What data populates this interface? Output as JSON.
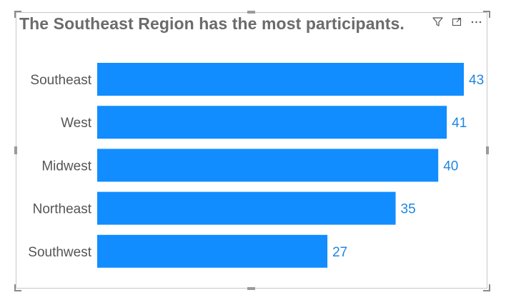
{
  "visual": {
    "title": "The Southeast Region has the most participants.",
    "header_icons": [
      "filter-icon",
      "focus-mode-icon",
      "more-options-icon"
    ]
  },
  "colors": {
    "bar": "#118dff",
    "value_label": "#1f86e0",
    "category_label": "#555555",
    "title": "#6b6b6b"
  },
  "chart_data": {
    "type": "bar",
    "orientation": "horizontal",
    "title": "The Southeast Region has the most participants.",
    "categories": [
      "Southeast",
      "West",
      "Midwest",
      "Northeast",
      "Southwest"
    ],
    "values": [
      43,
      41,
      40,
      35,
      27
    ],
    "xlabel": "",
    "ylabel": "",
    "xlim": [
      0,
      43
    ],
    "grid": false,
    "data_labels": true
  }
}
